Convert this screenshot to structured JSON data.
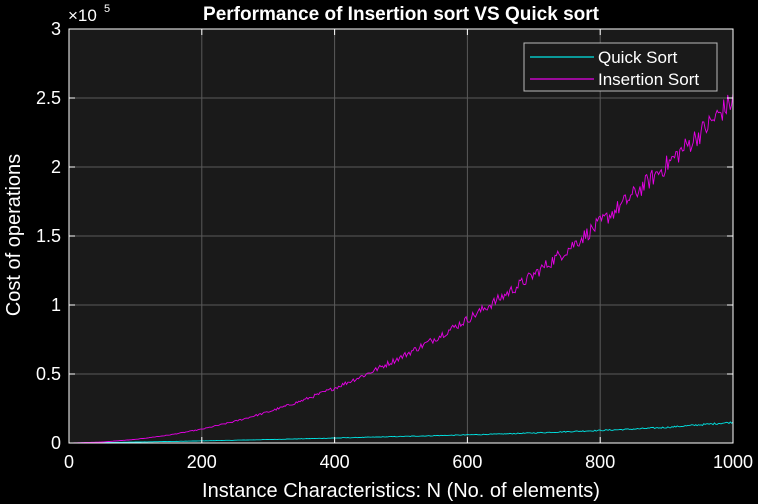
{
  "chart_data": {
    "type": "line",
    "title": "Performance of Insertion sort VS Quick sort",
    "xlabel": "Instance Characteristics: N (No. of elements)",
    "ylabel": "Cost of operations",
    "y_exponent_label": "×10",
    "y_exponent_power": "5",
    "xlim": [
      0,
      1000
    ],
    "ylim": [
      0,
      300000
    ],
    "y_scale_factor": 100000,
    "x_ticks": [
      0,
      200,
      400,
      600,
      800,
      1000
    ],
    "x_tick_labels": [
      "0",
      "200",
      "400",
      "600",
      "800",
      "1000"
    ],
    "y_ticks": [
      0,
      50000,
      100000,
      150000,
      200000,
      250000,
      300000
    ],
    "y_tick_labels": [
      "0",
      "0.5",
      "1",
      "1.5",
      "2",
      "2.5",
      "3"
    ],
    "grid": true,
    "legend_position": "top-right",
    "series": [
      {
        "name": "Quick Sort",
        "color": "#00e5e5",
        "x": [
          0,
          50,
          100,
          150,
          200,
          250,
          300,
          350,
          400,
          450,
          500,
          550,
          600,
          650,
          700,
          750,
          800,
          850,
          900,
          950,
          1000
        ],
        "y": [
          0,
          300,
          700,
          1100,
          1550,
          2000,
          2500,
          3050,
          3600,
          4150,
          4700,
          5300,
          5900,
          6500,
          7300,
          8200,
          9100,
          10100,
          11300,
          13200,
          15000
        ]
      },
      {
        "name": "Insertion Sort",
        "color": "#e600e6",
        "x": [
          0,
          50,
          100,
          150,
          200,
          250,
          300,
          350,
          400,
          450,
          500,
          550,
          600,
          650,
          700,
          750,
          800,
          850,
          900,
          950,
          1000
        ],
        "y": [
          0,
          700,
          2600,
          5700,
          10000,
          15700,
          22500,
          30500,
          39800,
          50300,
          62200,
          75300,
          89500,
          105100,
          122000,
          140100,
          159300,
          179800,
          201500,
          224300,
          248500
        ]
      }
    ]
  },
  "colors": {
    "figure_bg": "#000000",
    "axes_bg": "#1a1a1a",
    "grid": "#5a5a5a",
    "text": "#ffffff",
    "legend_bg": "#1a1a1a",
    "legend_border": "#bbbbbb"
  }
}
